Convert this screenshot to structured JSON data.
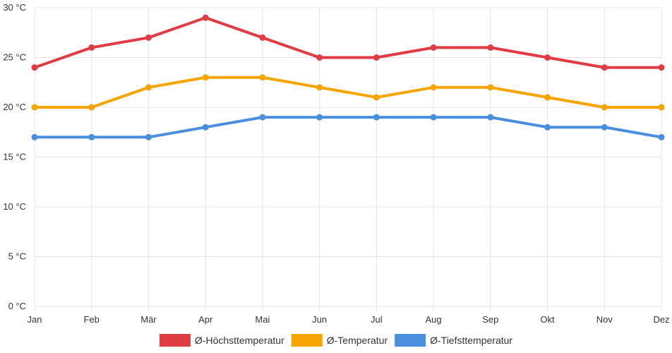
{
  "chart_data": {
    "type": "line",
    "title": "",
    "xlabel": "",
    "ylabel": "",
    "categories": [
      "Jan",
      "Feb",
      "Mär",
      "Apr",
      "Mai",
      "Jun",
      "Jul",
      "Aug",
      "Sep",
      "Okt",
      "Nov",
      "Dez"
    ],
    "ylim": [
      0,
      30
    ],
    "ytick_values": [
      0,
      5,
      10,
      15,
      20,
      25,
      30
    ],
    "ytick_labels": [
      "0 °C",
      "5 °C",
      "10 °C",
      "15 °C",
      "20 °C",
      "25 °C",
      "30 °C"
    ],
    "grid": true,
    "legend_position": "bottom-center",
    "series": [
      {
        "name": "Ø-Höchsttemperatur",
        "color": "#e03c44",
        "values": [
          24,
          26,
          27,
          29,
          27,
          25,
          25,
          26,
          26,
          25,
          24,
          24
        ]
      },
      {
        "name": "Ø-Temperatur",
        "color": "#f5a400",
        "values": [
          20,
          20,
          22,
          23,
          23,
          22,
          21,
          22,
          22,
          21,
          20,
          20
        ]
      },
      {
        "name": "Ø-Tiefsttemperatur",
        "color": "#4a8fde",
        "values": [
          17,
          17,
          17,
          18,
          19,
          19,
          19,
          19,
          19,
          18,
          18,
          17
        ]
      }
    ]
  }
}
